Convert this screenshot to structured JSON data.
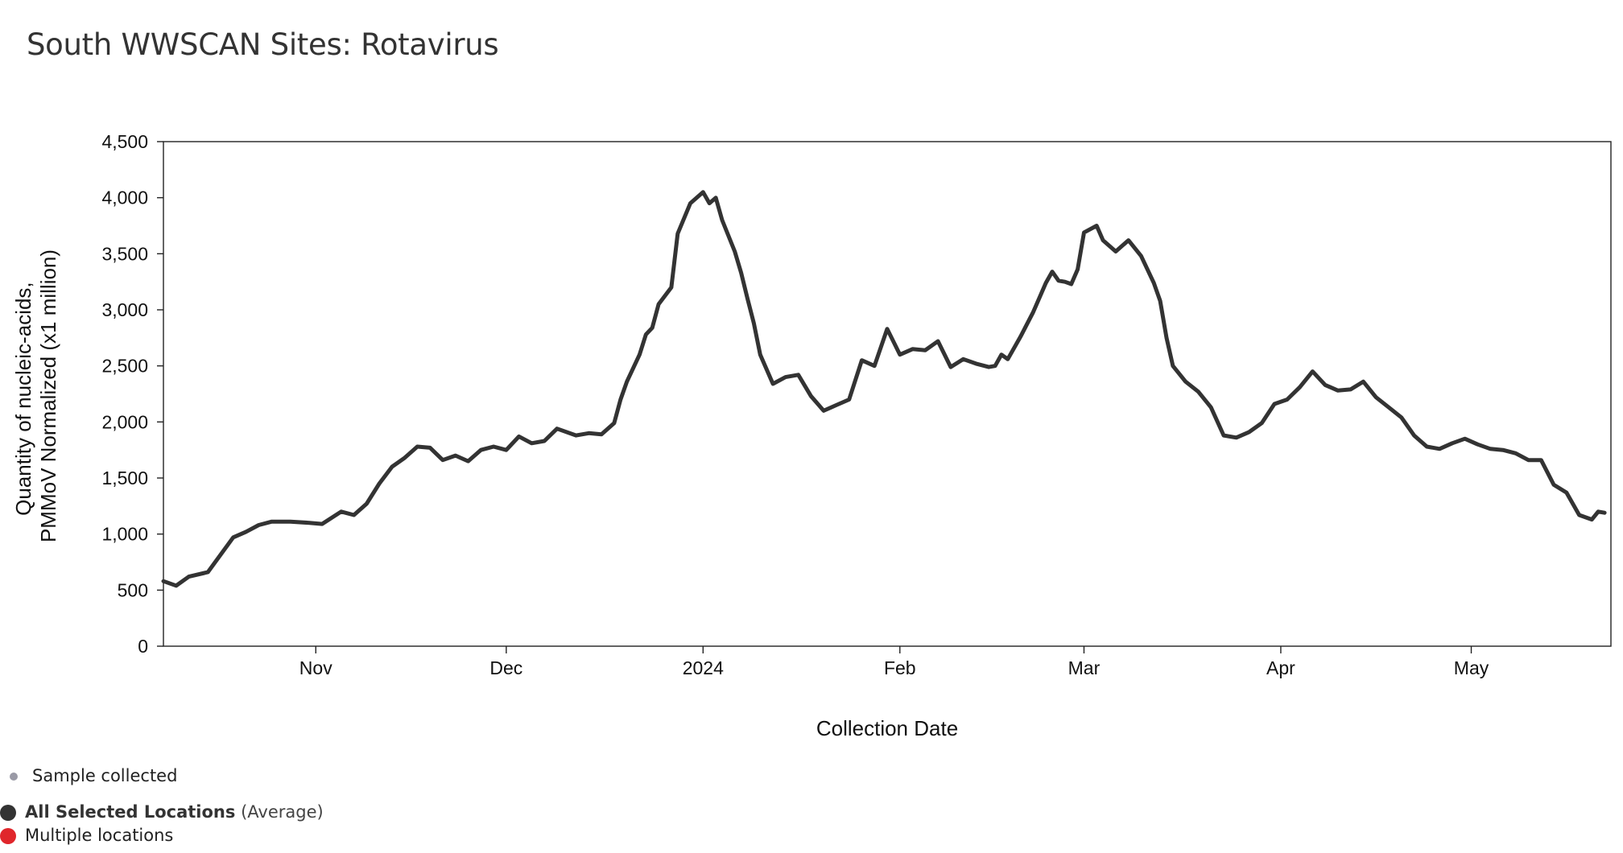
{
  "page": {
    "title": "South WWSCAN Sites: Rotavirus"
  },
  "legend": {
    "sample_label": "Sample collected",
    "avg_label_bold": "All Selected Locations",
    "avg_label_sub": "(Average)",
    "multiple_label": "Multiple locations",
    "colors": {
      "sample": "#9a9aa6",
      "average": "#333333",
      "multiple": "#e0262b"
    }
  },
  "chart_data": {
    "type": "line",
    "title": "South WWSCAN Sites: Rotavirus",
    "xlabel": "Collection Date",
    "ylabel_lines": [
      "Quantity of nucleic-acids,",
      "PMMoV Normalized (x1 million)"
    ],
    "ylim": [
      0,
      4500
    ],
    "y_ticks": [
      0,
      500,
      1000,
      1500,
      2000,
      2500,
      3000,
      3500,
      4000,
      4500
    ],
    "y_tick_labels": [
      "0",
      "500",
      "1,000",
      "1,500",
      "2,000",
      "2,500",
      "3,000",
      "3,500",
      "4,000",
      "4,500"
    ],
    "xlim": [
      "2023-10-08",
      "2024-05-23"
    ],
    "x_ticks": [
      "2023-11-01",
      "2023-12-01",
      "2024-01-01",
      "2024-02-01",
      "2024-03-01",
      "2024-04-01",
      "2024-05-01"
    ],
    "x_tick_labels": [
      "Nov",
      "Dec",
      "2024",
      "Feb",
      "Mar",
      "Apr",
      "May"
    ],
    "grid": false,
    "series": [
      {
        "name": "All Selected Locations",
        "color": "#333333",
        "x": [
          "2023-10-08",
          "2023-10-10",
          "2023-10-12",
          "2023-10-15",
          "2023-10-19",
          "2023-10-21",
          "2023-10-23",
          "2023-10-25",
          "2023-10-28",
          "2023-10-31",
          "2023-11-02",
          "2023-11-05",
          "2023-11-07",
          "2023-11-09",
          "2023-11-11",
          "2023-11-13",
          "2023-11-15",
          "2023-11-17",
          "2023-11-19",
          "2023-11-21",
          "2023-11-23",
          "2023-11-25",
          "2023-11-27",
          "2023-11-29",
          "2023-12-01",
          "2023-12-03",
          "2023-12-05",
          "2023-12-07",
          "2023-12-09",
          "2023-12-12",
          "2023-12-14",
          "2023-12-16",
          "2023-12-18",
          "2023-12-19",
          "2023-12-20",
          "2023-12-22",
          "2023-12-23",
          "2023-12-24",
          "2023-12-25",
          "2023-12-27",
          "2023-12-28",
          "2023-12-30",
          "2024-01-01",
          "2024-01-02",
          "2024-01-03",
          "2024-01-04",
          "2024-01-06",
          "2024-01-07",
          "2024-01-08",
          "2024-01-09",
          "2024-01-10",
          "2024-01-12",
          "2024-01-14",
          "2024-01-16",
          "2024-01-18",
          "2024-01-20",
          "2024-01-22",
          "2024-01-24",
          "2024-01-26",
          "2024-01-28",
          "2024-01-30",
          "2024-02-01",
          "2024-02-03",
          "2024-02-05",
          "2024-02-07",
          "2024-02-09",
          "2024-02-11",
          "2024-02-13",
          "2024-02-15",
          "2024-02-16",
          "2024-02-17",
          "2024-02-18",
          "2024-02-20",
          "2024-02-22",
          "2024-02-24",
          "2024-02-25",
          "2024-02-26",
          "2024-02-27",
          "2024-02-28",
          "2024-02-29",
          "2024-03-01",
          "2024-03-03",
          "2024-03-04",
          "2024-03-06",
          "2024-03-08",
          "2024-03-10",
          "2024-03-12",
          "2024-03-13",
          "2024-03-14",
          "2024-03-15",
          "2024-03-17",
          "2024-03-19",
          "2024-03-21",
          "2024-03-23",
          "2024-03-25",
          "2024-03-27",
          "2024-03-29",
          "2024-03-31",
          "2024-04-02",
          "2024-04-04",
          "2024-04-06",
          "2024-04-08",
          "2024-04-10",
          "2024-04-12",
          "2024-04-14",
          "2024-04-16",
          "2024-04-18",
          "2024-04-20",
          "2024-04-22",
          "2024-04-24",
          "2024-04-26",
          "2024-04-28",
          "2024-04-30",
          "2024-05-02",
          "2024-05-04",
          "2024-05-06",
          "2024-05-08",
          "2024-05-10",
          "2024-05-12",
          "2024-05-14",
          "2024-05-16",
          "2024-05-18",
          "2024-05-20",
          "2024-05-21",
          "2024-05-22"
        ],
        "values": [
          580,
          540,
          620,
          660,
          970,
          1020,
          1080,
          1110,
          1110,
          1100,
          1090,
          1200,
          1170,
          1270,
          1450,
          1600,
          1680,
          1780,
          1770,
          1660,
          1700,
          1650,
          1750,
          1780,
          1750,
          1870,
          1810,
          1830,
          1940,
          1880,
          1900,
          1890,
          1990,
          2200,
          2360,
          2600,
          2780,
          2840,
          3050,
          3200,
          3680,
          3950,
          4050,
          3950,
          4000,
          3800,
          3520,
          3330,
          3100,
          2880,
          2600,
          2340,
          2400,
          2420,
          2230,
          2100,
          2150,
          2200,
          2550,
          2500,
          2830,
          2600,
          2650,
          2640,
          2720,
          2490,
          2560,
          2520,
          2490,
          2500,
          2600,
          2560,
          2760,
          2980,
          3240,
          3340,
          3260,
          3250,
          3230,
          3360,
          3690,
          3750,
          3620,
          3520,
          3620,
          3480,
          3240,
          3080,
          2750,
          2500,
          2360,
          2270,
          2130,
          1880,
          1860,
          1910,
          1990,
          2160,
          2200,
          2310,
          2450,
          2330,
          2280,
          2290,
          2360,
          2220,
          2130,
          2040,
          1880,
          1780,
          1760,
          1810,
          1850,
          1800,
          1760,
          1750,
          1720,
          1660,
          1660,
          1440,
          1370,
          1170,
          1130,
          1200,
          1190
        ]
      }
    ]
  }
}
